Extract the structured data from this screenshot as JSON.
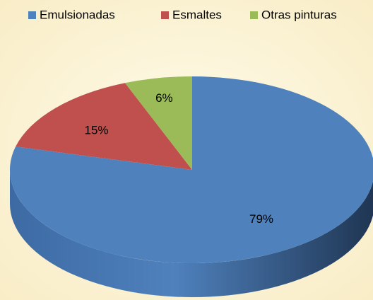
{
  "chart_data": {
    "type": "pie",
    "categories": [
      "Emulsionadas",
      "Esmaltes",
      "Otras pinturas"
    ],
    "values": [
      79,
      15,
      6
    ],
    "value_labels": [
      "79%",
      "15%",
      "6%"
    ],
    "colors": [
      "#4f81bd",
      "#c0504d",
      "#9bbb59"
    ],
    "legend": "top"
  }
}
